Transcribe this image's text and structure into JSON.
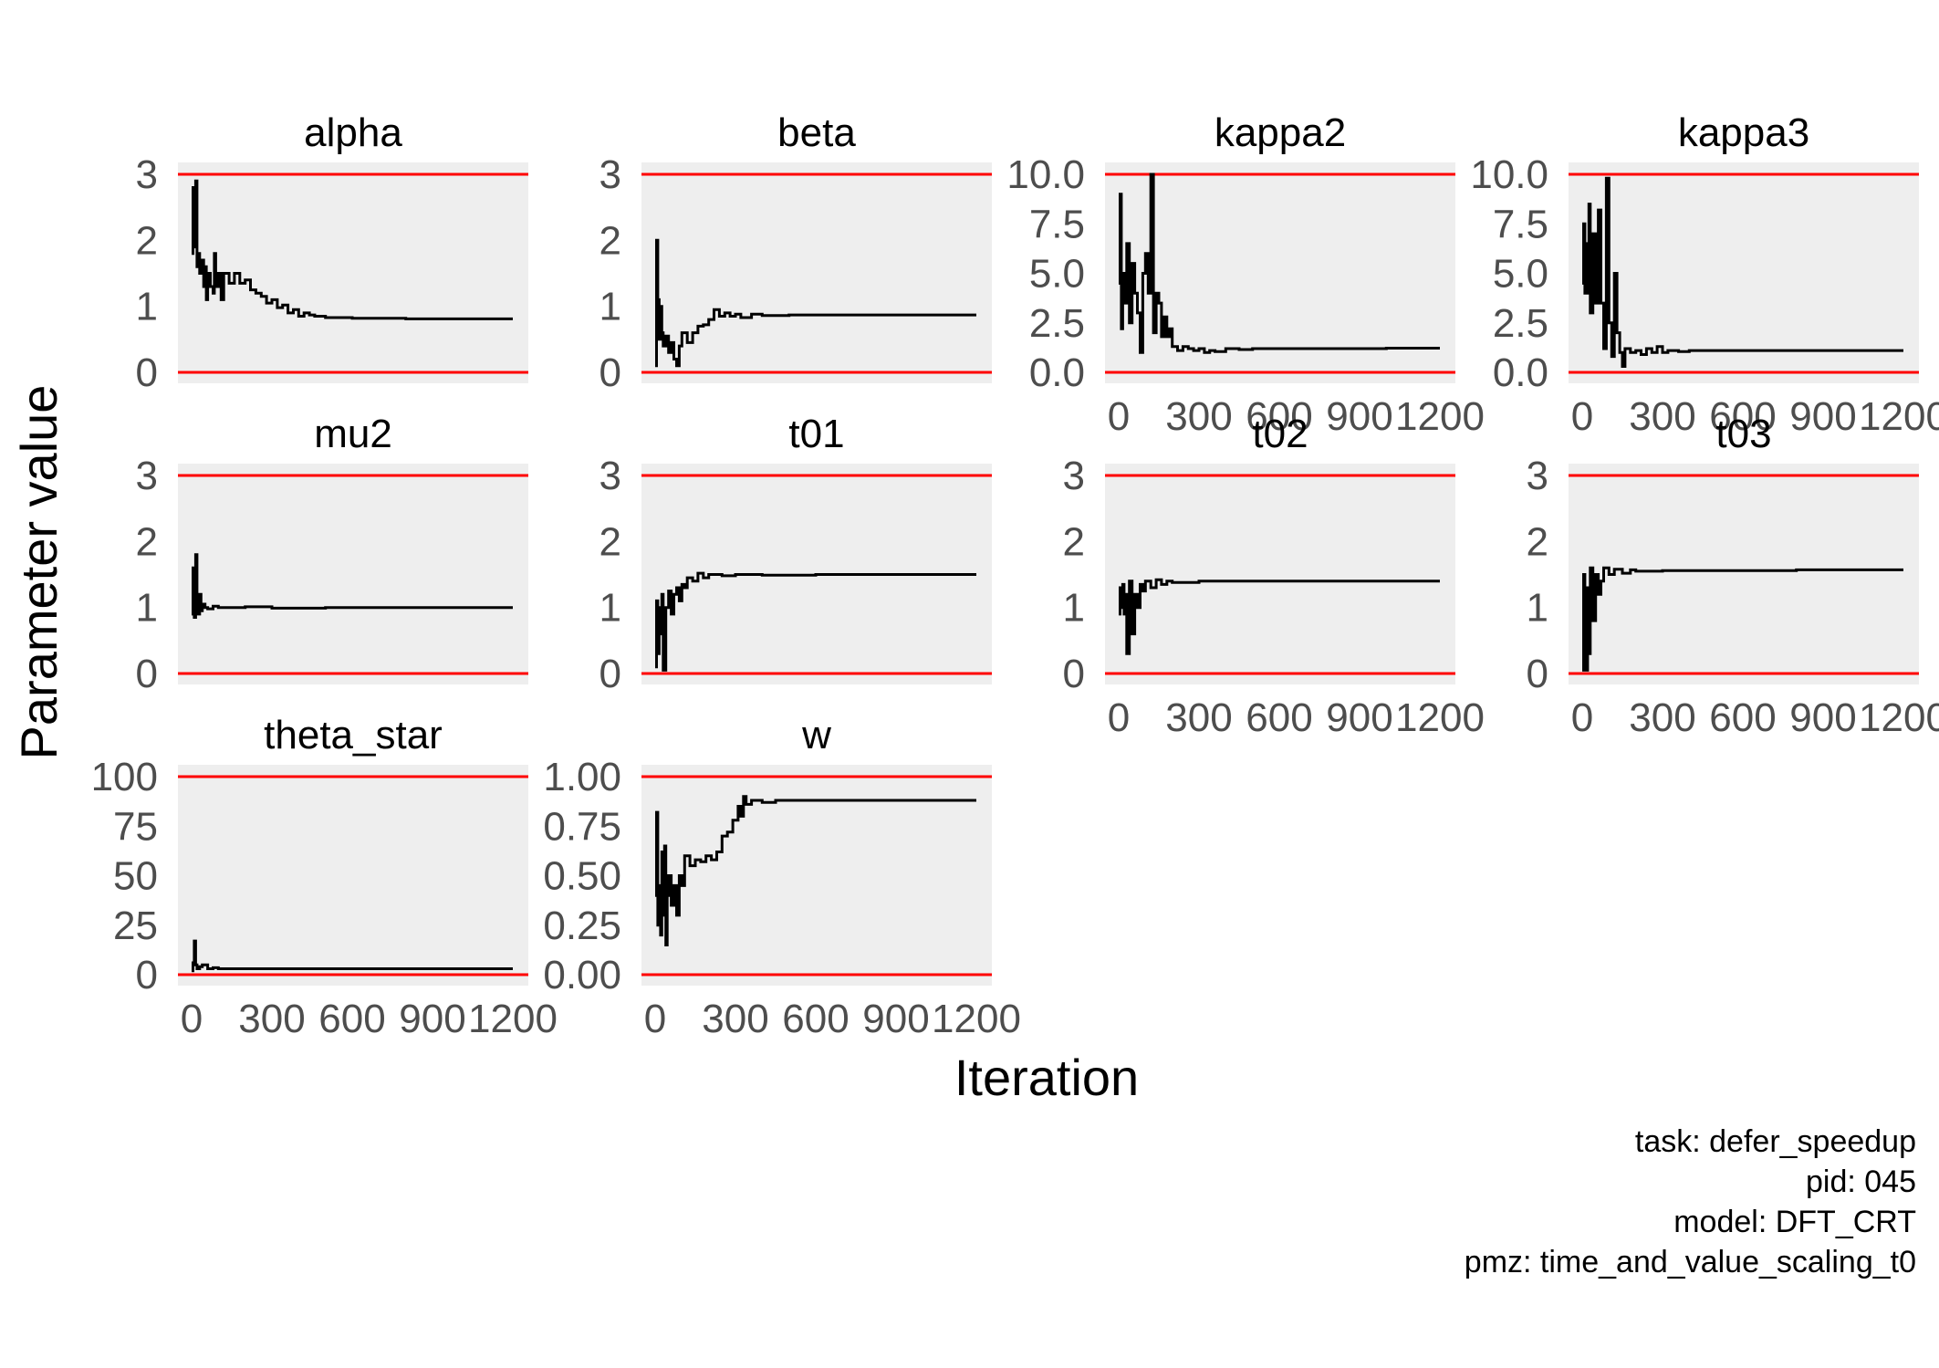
{
  "chart_data": {
    "type": "line",
    "xlabel": "Iteration",
    "ylabel": "Parameter value",
    "x_ticks": [
      "0",
      "300",
      "600",
      "900",
      "1200"
    ],
    "xlim": [
      0,
      1200
    ],
    "grid": false,
    "panel_background": "#eeeeee",
    "bound_line_color": "#ff0000",
    "trace_color": "#000000",
    "caption": [
      "task: defer_speedup",
      "pid: 045",
      "model: DFT_CRT",
      "pmz: time_and_value_scaling_t0"
    ],
    "panels": [
      {
        "name": "alpha",
        "ylim": [
          0,
          3
        ],
        "y_ticks": [
          "0",
          "1",
          "2",
          "3"
        ],
        "bounds": [
          0,
          3
        ],
        "points": [
          [
            0,
            1.8
          ],
          [
            5,
            2.8
          ],
          [
            10,
            1.9
          ],
          [
            15,
            2.9
          ],
          [
            20,
            1.6
          ],
          [
            25,
            1.8
          ],
          [
            30,
            1.5
          ],
          [
            40,
            1.7
          ],
          [
            45,
            1.3
          ],
          [
            50,
            1.6
          ],
          [
            55,
            1.1
          ],
          [
            60,
            1.5
          ],
          [
            70,
            1.3
          ],
          [
            80,
            1.2
          ],
          [
            85,
            1.8
          ],
          [
            90,
            1.3
          ],
          [
            100,
            1.5
          ],
          [
            110,
            1.1
          ],
          [
            120,
            1.5
          ],
          [
            140,
            1.35
          ],
          [
            160,
            1.5
          ],
          [
            180,
            1.35
          ],
          [
            200,
            1.4
          ],
          [
            220,
            1.25
          ],
          [
            240,
            1.2
          ],
          [
            260,
            1.15
          ],
          [
            280,
            1.05
          ],
          [
            300,
            1.1
          ],
          [
            320,
            0.98
          ],
          [
            340,
            1.02
          ],
          [
            360,
            0.9
          ],
          [
            380,
            0.95
          ],
          [
            400,
            0.85
          ],
          [
            420,
            0.9
          ],
          [
            440,
            0.87
          ],
          [
            460,
            0.85
          ],
          [
            500,
            0.83
          ],
          [
            600,
            0.82
          ],
          [
            800,
            0.81
          ],
          [
            1000,
            0.81
          ],
          [
            1200,
            0.81
          ]
        ]
      },
      {
        "name": "beta",
        "ylim": [
          0,
          3
        ],
        "y_ticks": [
          "0",
          "1",
          "2",
          "3"
        ],
        "bounds": [
          0,
          3
        ],
        "points": [
          [
            0,
            0.1
          ],
          [
            5,
            2.0
          ],
          [
            10,
            1.1
          ],
          [
            15,
            0.5
          ],
          [
            20,
            1.0
          ],
          [
            25,
            0.6
          ],
          [
            30,
            0.4
          ],
          [
            40,
            0.55
          ],
          [
            50,
            0.3
          ],
          [
            60,
            0.45
          ],
          [
            70,
            0.2
          ],
          [
            80,
            0.1
          ],
          [
            90,
            0.4
          ],
          [
            100,
            0.6
          ],
          [
            120,
            0.45
          ],
          [
            140,
            0.6
          ],
          [
            160,
            0.7
          ],
          [
            180,
            0.72
          ],
          [
            200,
            0.8
          ],
          [
            220,
            0.95
          ],
          [
            240,
            0.85
          ],
          [
            260,
            0.9
          ],
          [
            280,
            0.85
          ],
          [
            300,
            0.88
          ],
          [
            320,
            0.83
          ],
          [
            360,
            0.88
          ],
          [
            400,
            0.86
          ],
          [
            500,
            0.87
          ],
          [
            700,
            0.87
          ],
          [
            1000,
            0.87
          ],
          [
            1200,
            0.87
          ]
        ]
      },
      {
        "name": "kappa2",
        "ylim": [
          0,
          10
        ],
        "y_ticks": [
          "0.0",
          "2.5",
          "5.0",
          "7.5",
          "10.0"
        ],
        "bounds": [
          0,
          10
        ],
        "points": [
          [
            0,
            4.5
          ],
          [
            5,
            9.0
          ],
          [
            10,
            2.2
          ],
          [
            15,
            5.0
          ],
          [
            20,
            3.5
          ],
          [
            30,
            6.5
          ],
          [
            40,
            2.5
          ],
          [
            50,
            5.5
          ],
          [
            60,
            4.0
          ],
          [
            70,
            3.0
          ],
          [
            80,
            1.0
          ],
          [
            90,
            5.0
          ],
          [
            100,
            6.0
          ],
          [
            110,
            4.0
          ],
          [
            120,
            10.0
          ],
          [
            130,
            2.0
          ],
          [
            140,
            4.0
          ],
          [
            150,
            3.5
          ],
          [
            160,
            1.8
          ],
          [
            170,
            2.8
          ],
          [
            180,
            1.8
          ],
          [
            190,
            2.2
          ],
          [
            200,
            1.3
          ],
          [
            220,
            1.1
          ],
          [
            240,
            1.3
          ],
          [
            260,
            1.2
          ],
          [
            280,
            1.1
          ],
          [
            300,
            1.2
          ],
          [
            320,
            1.0
          ],
          [
            340,
            1.1
          ],
          [
            360,
            1.05
          ],
          [
            400,
            1.2
          ],
          [
            450,
            1.15
          ],
          [
            500,
            1.2
          ],
          [
            700,
            1.2
          ],
          [
            1000,
            1.22
          ],
          [
            1200,
            1.22
          ]
        ]
      },
      {
        "name": "kappa3",
        "ylim": [
          0,
          10
        ],
        "y_ticks": [
          "0.0",
          "2.5",
          "5.0",
          "7.5",
          "10.0"
        ],
        "bounds": [
          0,
          10
        ],
        "points": [
          [
            0,
            4.5
          ],
          [
            5,
            7.5
          ],
          [
            10,
            4.0
          ],
          [
            15,
            6.5
          ],
          [
            20,
            4.0
          ],
          [
            25,
            8.5
          ],
          [
            30,
            3.0
          ],
          [
            40,
            7.0
          ],
          [
            50,
            3.5
          ],
          [
            60,
            8.2
          ],
          [
            70,
            3.5
          ],
          [
            80,
            1.2
          ],
          [
            90,
            9.8
          ],
          [
            100,
            2.5
          ],
          [
            110,
            0.8
          ],
          [
            120,
            5.0
          ],
          [
            130,
            2.0
          ],
          [
            140,
            1.0
          ],
          [
            150,
            0.3
          ],
          [
            160,
            1.2
          ],
          [
            180,
            1.0
          ],
          [
            200,
            1.1
          ],
          [
            220,
            0.9
          ],
          [
            240,
            1.2
          ],
          [
            260,
            1.0
          ],
          [
            280,
            1.3
          ],
          [
            300,
            1.0
          ],
          [
            320,
            1.1
          ],
          [
            360,
            1.05
          ],
          [
            400,
            1.1
          ],
          [
            500,
            1.1
          ],
          [
            700,
            1.1
          ],
          [
            1000,
            1.1
          ],
          [
            1200,
            1.1
          ]
        ]
      },
      {
        "name": "mu2",
        "ylim": [
          0,
          3
        ],
        "y_ticks": [
          "0",
          "1",
          "2",
          "3"
        ],
        "bounds": [
          0,
          3
        ],
        "points": [
          [
            0,
            0.9
          ],
          [
            5,
            1.6
          ],
          [
            10,
            0.85
          ],
          [
            15,
            1.8
          ],
          [
            20,
            1.0
          ],
          [
            25,
            0.9
          ],
          [
            30,
            1.2
          ],
          [
            35,
            0.95
          ],
          [
            40,
            1.05
          ],
          [
            50,
            1.0
          ],
          [
            60,
            0.98
          ],
          [
            80,
            1.02
          ],
          [
            100,
            1.0
          ],
          [
            150,
            1.0
          ],
          [
            200,
            1.01
          ],
          [
            300,
            0.99
          ],
          [
            500,
            1.0
          ],
          [
            800,
            1.0
          ],
          [
            1200,
            1.0
          ]
        ]
      },
      {
        "name": "t01",
        "ylim": [
          0,
          3
        ],
        "y_ticks": [
          "0",
          "1",
          "2",
          "3"
        ],
        "bounds": [
          0,
          3
        ],
        "points": [
          [
            0,
            0.1
          ],
          [
            5,
            1.1
          ],
          [
            10,
            0.3
          ],
          [
            15,
            1.0
          ],
          [
            20,
            0.6
          ],
          [
            25,
            1.2
          ],
          [
            30,
            0.05
          ],
          [
            40,
            1.0
          ],
          [
            50,
            1.25
          ],
          [
            60,
            0.9
          ],
          [
            70,
            1.2
          ],
          [
            80,
            1.3
          ],
          [
            90,
            1.1
          ],
          [
            100,
            1.35
          ],
          [
            110,
            1.3
          ],
          [
            120,
            1.45
          ],
          [
            140,
            1.4
          ],
          [
            160,
            1.52
          ],
          [
            180,
            1.45
          ],
          [
            200,
            1.5
          ],
          [
            250,
            1.48
          ],
          [
            300,
            1.5
          ],
          [
            400,
            1.49
          ],
          [
            600,
            1.5
          ],
          [
            900,
            1.5
          ],
          [
            1200,
            1.5
          ]
        ]
      },
      {
        "name": "t02",
        "ylim": [
          0,
          3
        ],
        "y_ticks": [
          "0",
          "1",
          "2",
          "3"
        ],
        "bounds": [
          0,
          3
        ],
        "points": [
          [
            0,
            0.9
          ],
          [
            5,
            1.3
          ],
          [
            10,
            1.0
          ],
          [
            15,
            1.35
          ],
          [
            20,
            0.9
          ],
          [
            25,
            1.2
          ],
          [
            30,
            0.3
          ],
          [
            40,
            1.4
          ],
          [
            50,
            0.6
          ],
          [
            60,
            1.2
          ],
          [
            70,
            1.0
          ],
          [
            80,
            1.35
          ],
          [
            90,
            1.25
          ],
          [
            100,
            1.4
          ],
          [
            120,
            1.3
          ],
          [
            140,
            1.42
          ],
          [
            160,
            1.35
          ],
          [
            180,
            1.4
          ],
          [
            200,
            1.38
          ],
          [
            300,
            1.4
          ],
          [
            500,
            1.4
          ],
          [
            800,
            1.4
          ],
          [
            1200,
            1.4
          ]
        ]
      },
      {
        "name": "t03",
        "ylim": [
          0,
          3
        ],
        "y_ticks": [
          "0",
          "1",
          "2",
          "3"
        ],
        "bounds": [
          0,
          3
        ],
        "points": [
          [
            0,
            0.05
          ],
          [
            5,
            1.5
          ],
          [
            10,
            0.1
          ],
          [
            15,
            0.05
          ],
          [
            20,
            1.3
          ],
          [
            25,
            0.3
          ],
          [
            30,
            1.6
          ],
          [
            40,
            0.8
          ],
          [
            50,
            1.5
          ],
          [
            60,
            1.2
          ],
          [
            70,
            1.4
          ],
          [
            80,
            1.6
          ],
          [
            100,
            1.5
          ],
          [
            120,
            1.58
          ],
          [
            150,
            1.52
          ],
          [
            180,
            1.57
          ],
          [
            200,
            1.55
          ],
          [
            300,
            1.56
          ],
          [
            500,
            1.56
          ],
          [
            800,
            1.57
          ],
          [
            1200,
            1.57
          ]
        ]
      },
      {
        "name": "theta_star",
        "ylim": [
          0,
          100
        ],
        "y_ticks": [
          "0",
          "25",
          "50",
          "75",
          "100"
        ],
        "bounds": [
          0,
          100
        ],
        "points": [
          [
            0,
            2
          ],
          [
            5,
            6
          ],
          [
            10,
            17
          ],
          [
            15,
            5
          ],
          [
            20,
            3
          ],
          [
            30,
            4
          ],
          [
            40,
            5
          ],
          [
            60,
            3
          ],
          [
            80,
            3.5
          ],
          [
            100,
            3
          ],
          [
            200,
            3
          ],
          [
            400,
            3
          ],
          [
            800,
            3
          ],
          [
            1200,
            3
          ]
        ]
      },
      {
        "name": "w",
        "ylim": [
          0,
          1
        ],
        "y_ticks": [
          "0.00",
          "0.25",
          "0.50",
          "0.75",
          "1.00"
        ],
        "bounds": [
          0,
          1
        ],
        "points": [
          [
            0,
            0.4
          ],
          [
            5,
            0.82
          ],
          [
            10,
            0.25
          ],
          [
            15,
            0.45
          ],
          [
            20,
            0.2
          ],
          [
            25,
            0.62
          ],
          [
            30,
            0.3
          ],
          [
            35,
            0.65
          ],
          [
            40,
            0.15
          ],
          [
            45,
            0.4
          ],
          [
            50,
            0.5
          ],
          [
            60,
            0.35
          ],
          [
            70,
            0.45
          ],
          [
            80,
            0.3
          ],
          [
            90,
            0.5
          ],
          [
            100,
            0.45
          ],
          [
            110,
            0.6
          ],
          [
            130,
            0.55
          ],
          [
            150,
            0.58
          ],
          [
            170,
            0.57
          ],
          [
            190,
            0.6
          ],
          [
            210,
            0.58
          ],
          [
            230,
            0.62
          ],
          [
            250,
            0.7
          ],
          [
            270,
            0.72
          ],
          [
            290,
            0.78
          ],
          [
            310,
            0.85
          ],
          [
            320,
            0.8
          ],
          [
            330,
            0.9
          ],
          [
            340,
            0.86
          ],
          [
            360,
            0.88
          ],
          [
            400,
            0.87
          ],
          [
            450,
            0.88
          ],
          [
            600,
            0.88
          ],
          [
            900,
            0.88
          ],
          [
            1200,
            0.88
          ]
        ]
      }
    ]
  }
}
